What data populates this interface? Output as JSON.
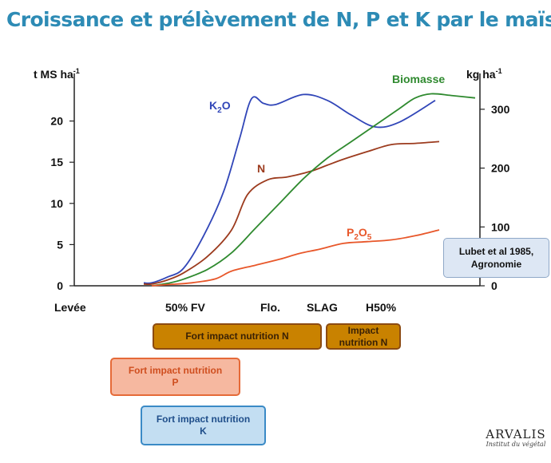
{
  "title": "Croissance et prélèvement de N, P et K par le maïs",
  "chart_data": {
    "type": "line",
    "left_axis": {
      "label": "t MS ha-1",
      "ticks": [
        0,
        5,
        10,
        15,
        20
      ],
      "range": [
        0,
        25
      ]
    },
    "right_axis": {
      "label": "kg ha-1",
      "ticks": [
        0,
        100,
        200,
        300
      ],
      "range": [
        0,
        350
      ]
    },
    "x_stages": [
      "Levée",
      "50% FV",
      "Flo.",
      "SLAG",
      "H50%"
    ],
    "series": [
      {
        "name": "K2O",
        "axis": "right",
        "color": "#3146b8",
        "x": [
          0.7,
          0.8,
          1.0,
          1.2,
          1.45,
          1.7,
          1.9,
          2.05,
          2.2,
          2.35,
          2.7,
          3.0,
          3.3,
          3.6,
          3.9,
          4.35
        ],
        "y": [
          5,
          5,
          15,
          30,
          85,
          160,
          250,
          318,
          310,
          308,
          325,
          315,
          290,
          270,
          278,
          315
        ]
      },
      {
        "name": "N",
        "axis": "right",
        "color": "#9c3b1e",
        "x": [
          0.7,
          0.8,
          1.0,
          1.2,
          1.5,
          1.8,
          2.0,
          2.25,
          2.5,
          2.8,
          3.0,
          3.2,
          3.5,
          3.8,
          4.1,
          4.4
        ],
        "y": [
          3,
          3,
          10,
          22,
          50,
          95,
          155,
          180,
          185,
          195,
          205,
          215,
          228,
          240,
          242,
          245
        ]
      },
      {
        "name": "Biomasse",
        "axis": "left",
        "color": "#2f8a2f",
        "x": [
          0.8,
          1.0,
          1.2,
          1.5,
          1.8,
          2.1,
          2.4,
          2.7,
          3.0,
          3.3,
          3.6,
          3.9,
          4.1,
          4.3,
          4.55,
          4.85
        ],
        "y": [
          0,
          0.3,
          0.8,
          2,
          4,
          7,
          10,
          13,
          15.5,
          17.5,
          19.5,
          21.5,
          22.8,
          23.3,
          23.1,
          22.8
        ]
      },
      {
        "name": "P2O5",
        "axis": "right",
        "color": "#e8572a",
        "x": [
          0.8,
          1.0,
          1.3,
          1.6,
          1.8,
          2.1,
          2.4,
          2.65,
          2.9,
          3.2,
          3.5,
          3.8,
          4.1,
          4.4
        ],
        "y": [
          0,
          2,
          5,
          12,
          25,
          35,
          45,
          55,
          62,
          72,
          75,
          78,
          85,
          95
        ]
      }
    ]
  },
  "bars": [
    {
      "name": "n-strong",
      "text": "Fort impact nutrition N"
    },
    {
      "name": "n-medium",
      "text": "Impact nutrition N"
    },
    {
      "name": "p-strong",
      "text": "Fort impact nutrition P"
    },
    {
      "name": "k-strong",
      "text": "Fort impact nutrition K"
    }
  ],
  "source": "Lubet et al 1985, Agronomie",
  "logo": {
    "name": "ARVALIS",
    "subtitle": "Institut du végétal"
  }
}
